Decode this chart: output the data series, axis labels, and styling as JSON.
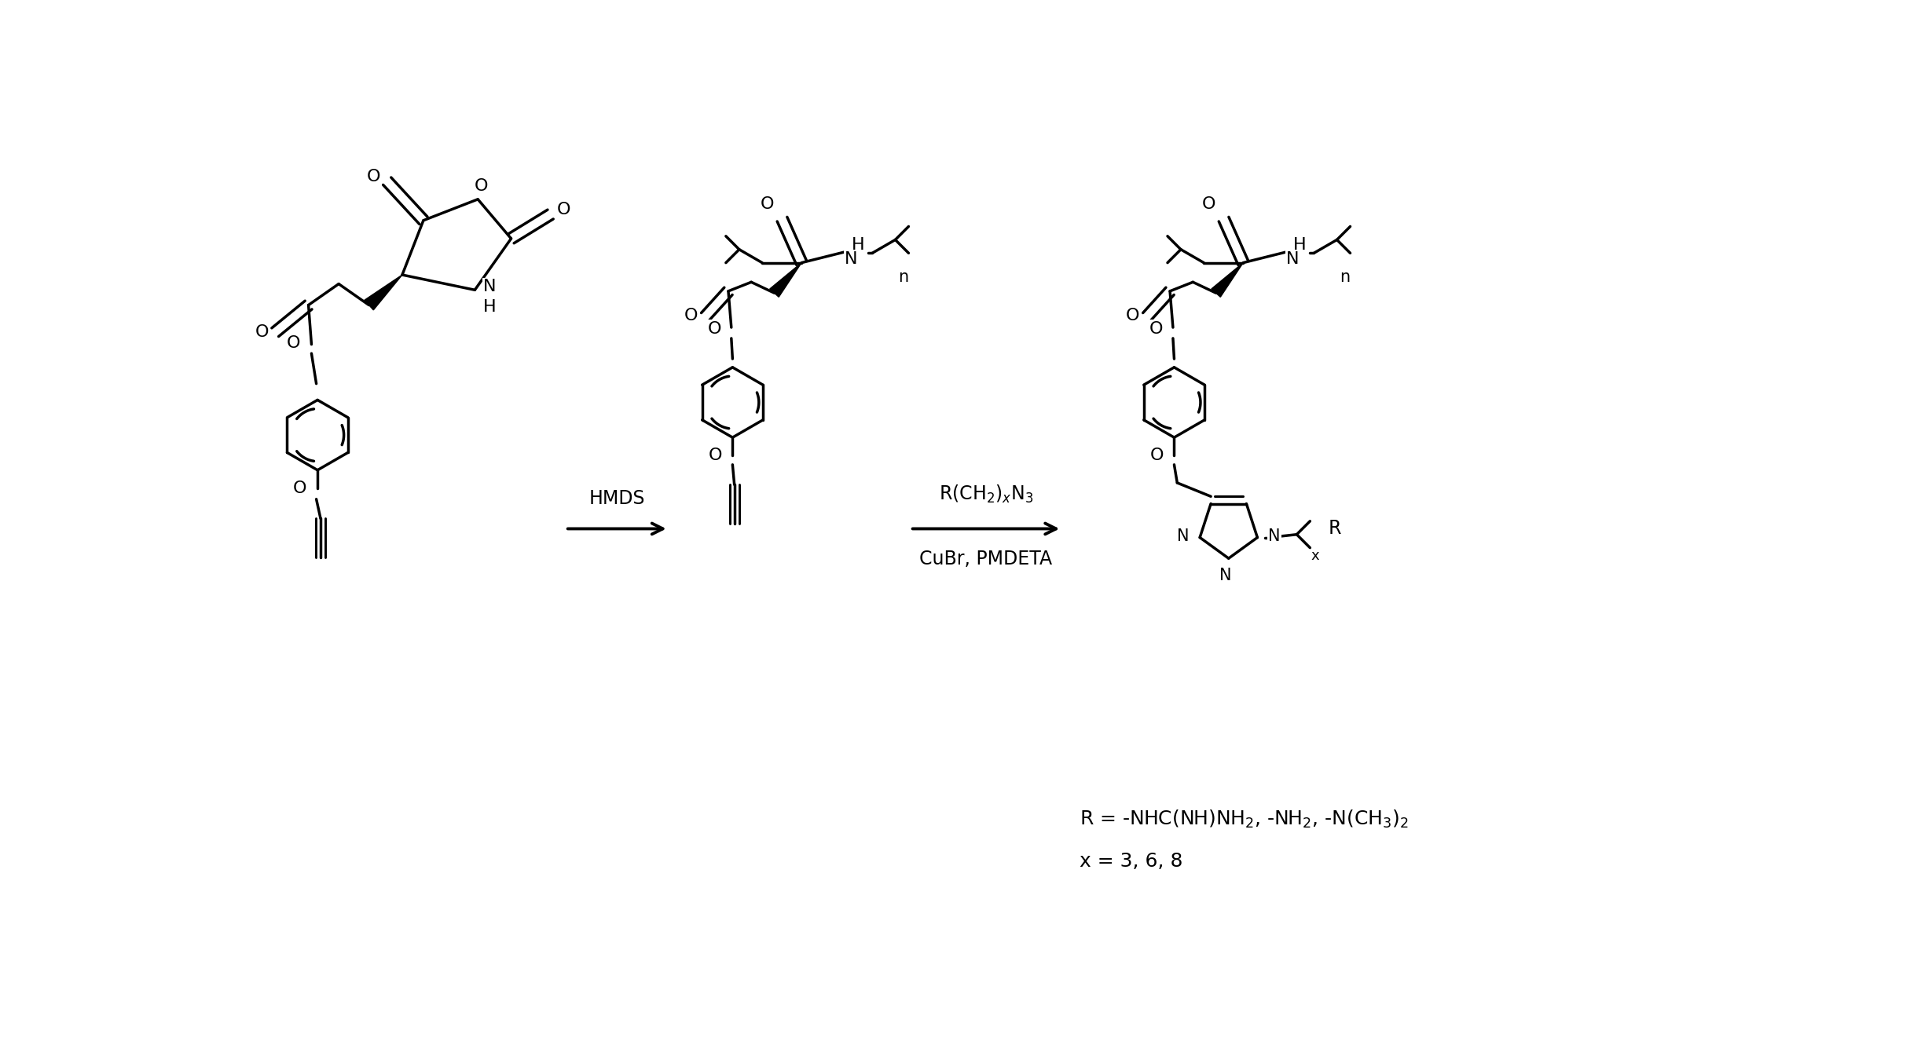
{
  "bg_color": "#ffffff",
  "lc": "#000000",
  "lw": 2.5,
  "figsize": [
    24.45,
    13.45
  ],
  "dpi": 100,
  "arrow1_label": "HMDS",
  "arrow2_top": "R(CH$_2$)$_x$N$_3$",
  "arrow2_bot": "CuBr, PMDETA",
  "legend1": "R = -NHC(NH)NH$_2$, -NH$_2$, -N(CH$_3$)$_2$",
  "legend2": "x = 3, 6, 8"
}
